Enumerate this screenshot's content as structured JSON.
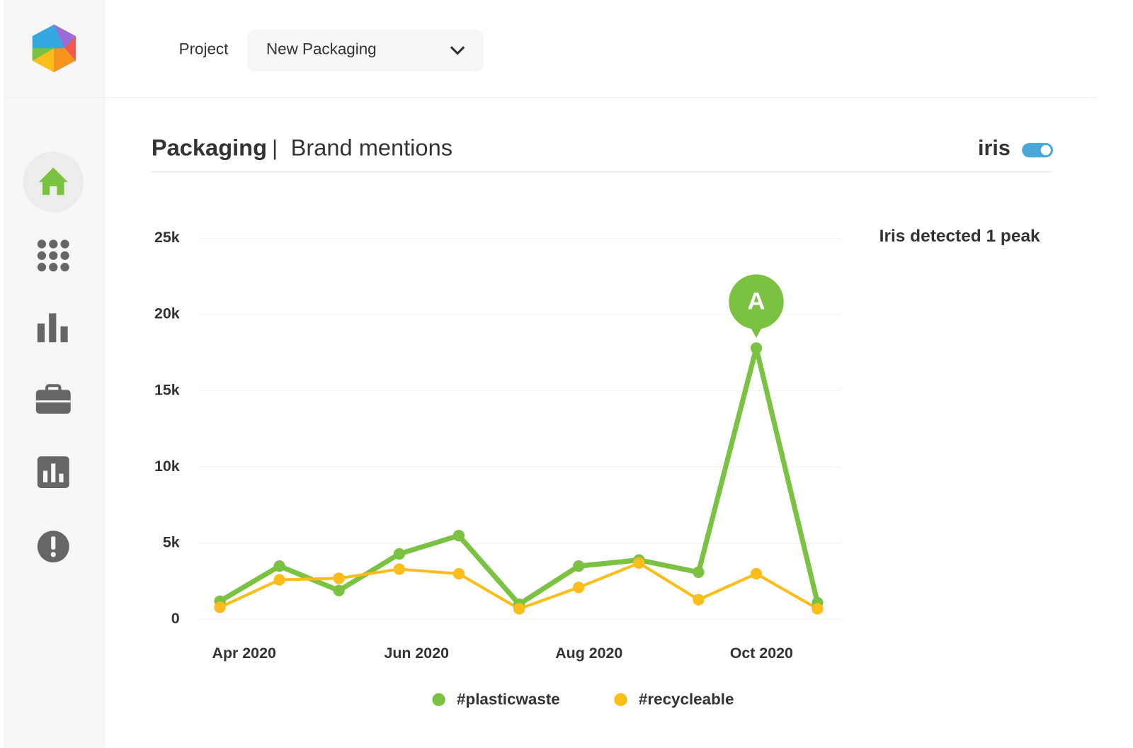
{
  "header": {
    "project_label": "Project",
    "project_value": "New Packaging"
  },
  "panel": {
    "title": "Packaging",
    "separator": "|",
    "subtitle": "Brand mentions",
    "toggle_label": "iris"
  },
  "chart_data": {
    "type": "line",
    "annotations": {
      "note": "Iris detected 1 peak",
      "pin": "A"
    },
    "x": [
      3.72,
      4.41,
      5.1,
      5.8,
      6.49,
      7.19,
      7.88,
      8.58,
      9.27,
      9.94,
      10.65
    ],
    "xlim": [
      3.47,
      10.92
    ],
    "xticks": [
      {
        "value": 4,
        "label": "Apr 2020"
      },
      {
        "value": 6,
        "label": "Jun 2020"
      },
      {
        "value": 8,
        "label": "Aug 2020"
      },
      {
        "value": 10,
        "label": "Oct 2020"
      }
    ],
    "ylim": [
      0,
      25000
    ],
    "yticks": [
      0,
      {
        "value": 5000,
        "label": "5k"
      },
      {
        "value": 10000,
        "label": "10k"
      },
      {
        "value": 15000,
        "label": "15k"
      },
      {
        "value": 20000,
        "label": "20k"
      },
      {
        "value": 25000,
        "label": "25k"
      }
    ],
    "grid": true,
    "series": [
      {
        "name": "#plasticwaste",
        "color": "#7cc242",
        "values": [
          1200,
          3500,
          1900,
          4300,
          5500,
          1000,
          3500,
          3900,
          3100,
          17800,
          1100
        ]
      },
      {
        "name": "#recycleable",
        "color": "#fbbd19",
        "values": [
          800,
          2600,
          2700,
          3300,
          3000,
          700,
          2100,
          3700,
          1300,
          3000,
          700
        ]
      }
    ]
  }
}
